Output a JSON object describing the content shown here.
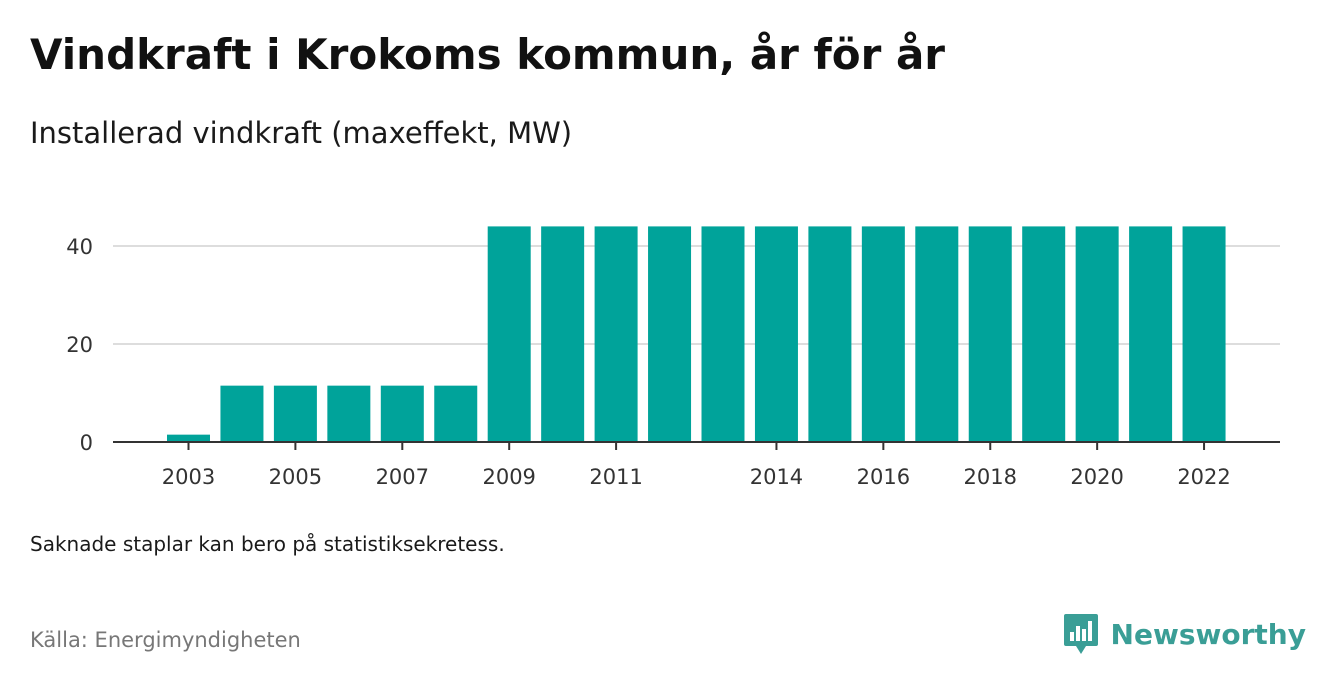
{
  "title": "Vindkraft i Krokoms kommun, år för år",
  "subtitle": "Installerad vindkraft (maxeffekt, MW)",
  "note": "Saknade staplar kan bero på statistiksekretess.",
  "source": "Källa: Energimyndigheten",
  "brand": {
    "name": "Newsworthy",
    "icon": "newsworthy-logo-icon",
    "color": "#3a9e96"
  },
  "colors": {
    "bar": "#00a39a",
    "grid": "#dddddd",
    "axis": "#333333"
  },
  "chart_data": {
    "type": "bar",
    "title": "Vindkraft i Krokoms kommun, år för år",
    "subtitle": "Installerad vindkraft (maxeffekt, MW)",
    "xlabel": "",
    "ylabel": "",
    "categories": [
      "2003",
      "2004",
      "2005",
      "2006",
      "2007",
      "2008",
      "2009",
      "2010",
      "2011",
      "2012",
      "2013",
      "2014",
      "2015",
      "2016",
      "2017",
      "2018",
      "2019",
      "2020",
      "2021",
      "2022"
    ],
    "values": [
      1.5,
      11.5,
      11.5,
      11.5,
      11.5,
      11.5,
      44,
      44,
      44,
      44,
      44,
      44,
      44,
      44,
      44,
      44,
      44,
      44,
      44,
      44
    ],
    "x_tick_labels": [
      "2003",
      "2005",
      "2007",
      "2009",
      "2011",
      "2014",
      "2016",
      "2018",
      "2020",
      "2022"
    ],
    "y_ticks": [
      0,
      20,
      40
    ],
    "ylim": [
      0,
      47
    ],
    "grid": true,
    "legend": "none"
  }
}
